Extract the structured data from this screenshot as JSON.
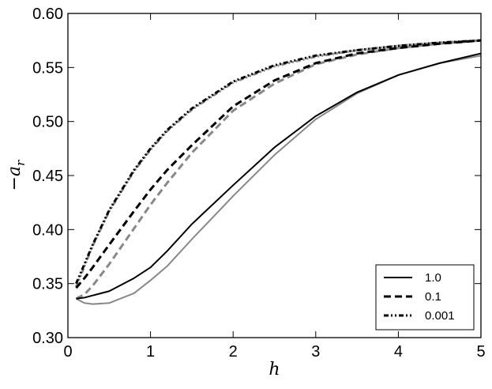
{
  "chart_data": {
    "type": "line",
    "xlabel": "h",
    "ylabel": "−a_r",
    "xlim": [
      0,
      5
    ],
    "ylim": [
      0.3,
      0.6
    ],
    "xticks": [
      "0",
      "1",
      "2",
      "3",
      "4",
      "5"
    ],
    "yticks": [
      "0.30",
      "0.35",
      "0.40",
      "0.45",
      "0.50",
      "0.55",
      "0.60"
    ],
    "grid": false,
    "legend_position": "bottom-right",
    "series": [
      {
        "name": "1.0",
        "style": "solid",
        "color": "#000000",
        "x": [
          0.1,
          0.2,
          0.3,
          0.5,
          0.8,
          1.0,
          1.2,
          1.5,
          2.0,
          2.5,
          3.0,
          3.5,
          4.0,
          4.5,
          5.0
        ],
        "y": [
          0.336,
          0.337,
          0.339,
          0.343,
          0.355,
          0.365,
          0.38,
          0.405,
          0.441,
          0.476,
          0.505,
          0.527,
          0.543,
          0.554,
          0.563
        ]
      },
      {
        "name": "1.0",
        "style": "solid",
        "color": "#888888",
        "in_legend": false,
        "x": [
          0.1,
          0.2,
          0.3,
          0.5,
          0.8,
          1.0,
          1.2,
          1.5,
          2.0,
          2.5,
          3.0,
          3.5,
          4.0,
          4.5,
          5.0
        ],
        "y": [
          0.336,
          0.332,
          0.331,
          0.332,
          0.341,
          0.353,
          0.366,
          0.391,
          0.431,
          0.469,
          0.502,
          0.526,
          0.543,
          0.554,
          0.561
        ]
      },
      {
        "name": "0.1",
        "style": "dashed",
        "color": "#000000",
        "x": [
          0.1,
          0.2,
          0.3,
          0.5,
          0.8,
          1.0,
          1.2,
          1.5,
          2.0,
          2.5,
          3.0,
          3.5,
          4.0,
          4.5,
          5.0
        ],
        "y": [
          0.346,
          0.355,
          0.365,
          0.386,
          0.417,
          0.437,
          0.455,
          0.478,
          0.514,
          0.538,
          0.554,
          0.563,
          0.568,
          0.572,
          0.575
        ]
      },
      {
        "name": "0.1",
        "style": "dashed",
        "color": "#888888",
        "in_legend": false,
        "x": [
          0.1,
          0.2,
          0.3,
          0.5,
          0.8,
          1.0,
          1.2,
          1.5,
          2.0,
          2.5,
          3.0,
          3.5,
          4.0,
          4.5,
          5.0
        ],
        "y": [
          0.336,
          0.34,
          0.348,
          0.368,
          0.401,
          0.423,
          0.443,
          0.471,
          0.51,
          0.535,
          0.553,
          0.562,
          0.568,
          0.572,
          0.575
        ]
      },
      {
        "name": "0.001",
        "style": "dashdotdot",
        "color": "#000000",
        "x": [
          0.1,
          0.2,
          0.3,
          0.5,
          0.8,
          1.0,
          1.2,
          1.5,
          2.0,
          2.5,
          3.0,
          3.5,
          4.0,
          4.5,
          5.0
        ],
        "y": [
          0.35,
          0.368,
          0.386,
          0.418,
          0.455,
          0.475,
          0.492,
          0.512,
          0.537,
          0.552,
          0.561,
          0.566,
          0.57,
          0.573,
          0.575
        ]
      },
      {
        "name": "0.001",
        "style": "dashdotdot",
        "color": "#888888",
        "in_legend": false,
        "x": [
          0.1,
          0.2,
          0.3,
          0.5,
          0.8,
          1.0,
          1.2,
          1.5,
          2.0,
          2.5,
          3.0,
          3.5,
          4.0,
          4.5,
          5.0
        ],
        "y": [
          0.347,
          0.366,
          0.385,
          0.417,
          0.454,
          0.474,
          0.491,
          0.511,
          0.536,
          0.551,
          0.56,
          0.566,
          0.57,
          0.573,
          0.575
        ]
      }
    ]
  }
}
